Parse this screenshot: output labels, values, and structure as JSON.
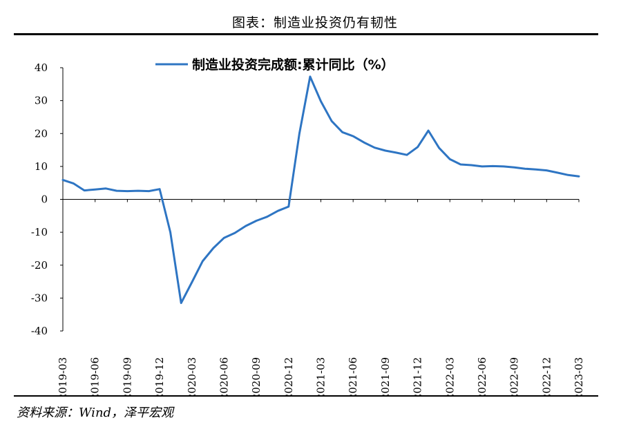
{
  "figure": {
    "title": "图表：制造业投资仍有韧性",
    "source": "资料来源：Wind，泽平宏观"
  },
  "chart_data": {
    "type": "line",
    "title": "",
    "xlabel": "",
    "ylabel": "",
    "ylim": [
      -40,
      40
    ],
    "yticks": [
      40,
      30,
      20,
      10,
      0,
      -10,
      -20,
      -30,
      -40
    ],
    "grid": false,
    "legend_position": "top-center",
    "x_tick_labels": [
      "2019-03",
      "2019-06",
      "2019-09",
      "2019-12",
      "2020-03",
      "2020-06",
      "2020-09",
      "2020-12",
      "2021-03",
      "2021-06",
      "2021-09",
      "2021-12",
      "2022-03",
      "2022-06",
      "2022-09",
      "2022-12",
      "2023-03"
    ],
    "x": [
      "2019-03",
      "2019-04",
      "2019-05",
      "2019-06",
      "2019-07",
      "2019-08",
      "2019-09",
      "2019-10",
      "2019-11",
      "2019-12",
      "2020-01",
      "2020-02",
      "2020-03",
      "2020-04",
      "2020-05",
      "2020-06",
      "2020-07",
      "2020-08",
      "2020-09",
      "2020-10",
      "2020-11",
      "2020-12",
      "2021-01",
      "2021-02",
      "2021-03",
      "2021-04",
      "2021-05",
      "2021-06",
      "2021-07",
      "2021-08",
      "2021-09",
      "2021-10",
      "2021-11",
      "2021-12",
      "2022-01",
      "2022-02",
      "2022-03",
      "2022-04",
      "2022-05",
      "2022-06",
      "2022-07",
      "2022-08",
      "2022-09",
      "2022-10",
      "2022-11",
      "2022-12",
      "2023-01",
      "2023-02",
      "2023-03"
    ],
    "series": [
      {
        "name": "制造业投资完成额:累计同比（%）",
        "color": "#2E75C3",
        "values": [
          5.9,
          4.8,
          2.7,
          3.0,
          3.3,
          2.6,
          2.5,
          2.6,
          2.5,
          3.1,
          -10.0,
          -31.5,
          -25.2,
          -18.8,
          -14.8,
          -11.7,
          -10.2,
          -8.1,
          -6.5,
          -5.3,
          -3.5,
          -2.2,
          20.0,
          37.3,
          29.8,
          23.8,
          20.4,
          19.2,
          17.3,
          15.7,
          14.8,
          14.2,
          13.5,
          15.9,
          20.9,
          15.6,
          12.2,
          10.6,
          10.4,
          10.0,
          10.1,
          10.0,
          9.7,
          9.3,
          9.1,
          8.8,
          8.1,
          7.4,
          7.0
        ]
      }
    ]
  }
}
